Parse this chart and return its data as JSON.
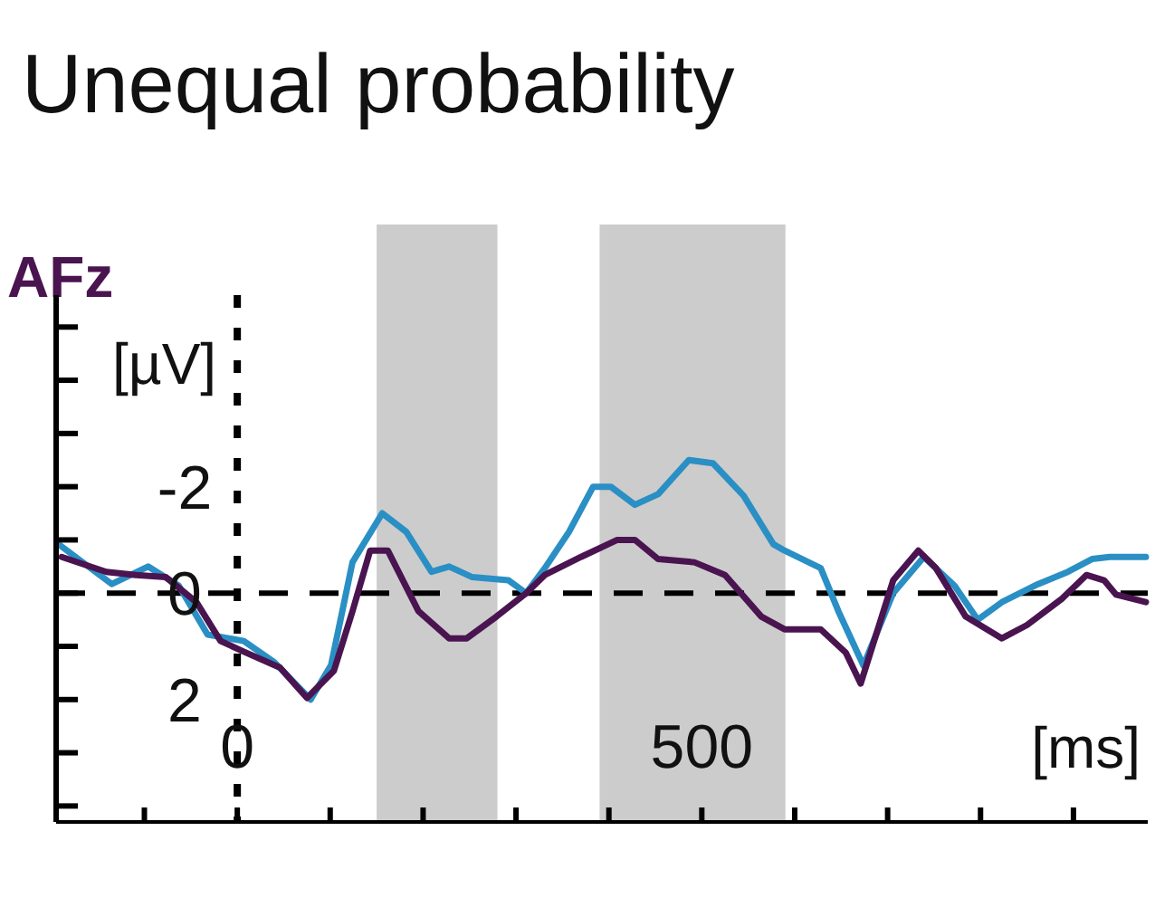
{
  "chart_data": {
    "type": "line",
    "title": "Unequal probability",
    "subtitle": "AFz",
    "xlabel": "[ms]",
    "ylabel": "[µV]",
    "xlim": [
      -195,
      980
    ],
    "xticks": [
      {
        "value": -100,
        "label": null
      },
      {
        "value": 0,
        "label": "0"
      },
      {
        "value": 100,
        "label": null
      },
      {
        "value": 200,
        "label": null
      },
      {
        "value": 300,
        "label": null
      },
      {
        "value": 400,
        "label": null
      },
      {
        "value": 500,
        "label": "500"
      },
      {
        "value": 600,
        "label": null
      },
      {
        "value": 700,
        "label": null
      },
      {
        "value": 800,
        "label": null
      },
      {
        "value": 900,
        "label": null
      }
    ],
    "ylim": [
      4.3,
      -5.6
    ],
    "yticks": [
      {
        "value": -5,
        "label": null
      },
      {
        "value": -4,
        "label": null
      },
      {
        "value": -3,
        "label": null
      },
      {
        "value": -2,
        "label": "-2"
      },
      {
        "value": -1,
        "label": null
      },
      {
        "value": 0,
        "label": "0"
      },
      {
        "value": 1,
        "label": null
      },
      {
        "value": 2,
        "label": "2"
      },
      {
        "value": 3,
        "label": null
      },
      {
        "value": 4,
        "label": null
      }
    ],
    "grid": false,
    "line_style": "solid",
    "bands": [
      {
        "axis": "x",
        "from": 150,
        "to": 280,
        "color": "#cccccc"
      },
      {
        "axis": "x",
        "from": 390,
        "to": 590,
        "color": "#cccccc"
      }
    ],
    "ref_lines": [
      {
        "axis": "y",
        "value": 0,
        "color": "#000000",
        "line_style": "dashed"
      },
      {
        "axis": "x",
        "value": 0,
        "color": "#000000",
        "line_style": "dotted"
      }
    ],
    "series": [
      {
        "color": "#2a8fc4",
        "x": [
          -191,
          -135,
          -96,
          -63,
          -32,
          7,
          40,
          79,
          101,
          124,
          156,
          182,
          209,
          228,
          253,
          292,
          311,
          331,
          357,
          383,
          402,
          428,
          453,
          486,
          512,
          545,
          577,
          589,
          628,
          647,
          674,
          706,
          739,
          772,
          797,
          823,
          862,
          894,
          920,
          939,
          978
        ],
        "values": [
          -0.9,
          -0.17,
          -0.5,
          -0.14,
          0.78,
          0.9,
          1.3,
          2.0,
          1.35,
          -0.58,
          -1.5,
          -1.15,
          -0.4,
          -0.5,
          -0.3,
          -0.24,
          0,
          -0.47,
          -1.15,
          -2.0,
          -2.0,
          -1.66,
          -1.86,
          -2.5,
          -2.44,
          -1.83,
          -0.92,
          -0.8,
          -0.47,
          0.34,
          1.36,
          0,
          -0.68,
          -0.14,
          0.5,
          0.17,
          -0.17,
          -0.4,
          -0.64,
          -0.68,
          -0.68
        ]
      },
      {
        "color": "#4a1450",
        "x": [
          -189,
          -141,
          -109,
          -77,
          -44,
          -18,
          7,
          46,
          75,
          104,
          124,
          143,
          162,
          195,
          228,
          247,
          279,
          311,
          331,
          370,
          409,
          428,
          453,
          492,
          525,
          564,
          589,
          628,
          655,
          671,
          706,
          733,
          752,
          784,
          823,
          850,
          888,
          914,
          933,
          946,
          978
        ],
        "values": [
          -0.68,
          -0.4,
          -0.34,
          -0.3,
          0.17,
          0.9,
          1.1,
          1.4,
          1.97,
          1.46,
          0.34,
          -0.8,
          -0.8,
          0.34,
          0.85,
          0.85,
          0.44,
          0,
          -0.34,
          -0.68,
          -1.0,
          -1.0,
          -0.64,
          -0.58,
          -0.34,
          0.44,
          0.68,
          0.68,
          1.12,
          1.7,
          -0.24,
          -0.8,
          -0.47,
          0.44,
          0.85,
          0.6,
          0.1,
          -0.34,
          -0.24,
          0.03,
          0.17
        ]
      }
    ]
  }
}
